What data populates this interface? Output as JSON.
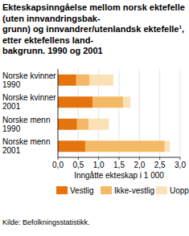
{
  "chart_data": {
    "type": "bar",
    "orientation": "horizontal",
    "stacked": true,
    "title": "Ekteskapsinngåelse mellom norsk ektefelle (uten innvandringsbak- grunn) og innvandrer/utenlandsk ektefelle¹, etter ektefellens land- bakgrunn. 1990 og 2001",
    "categories": [
      "Norske kvinner 1990",
      "Norske kvinner 2001",
      "Norske menn 1990",
      "Norske menn 2001"
    ],
    "series": [
      {
        "name": "Vestlig",
        "color": "#e5740f",
        "values": [
          0.45,
          0.85,
          0.47,
          0.67
        ]
      },
      {
        "name": "Ikke-vestlig",
        "color": "#f4b967",
        "values": [
          0.32,
          0.75,
          0.28,
          1.95
        ]
      },
      {
        "name": "Uoppgitt",
        "color": "#fbe2b6",
        "values": [
          0.59,
          0.18,
          0.5,
          0.13
        ]
      }
    ],
    "xlabel": "Inngåtte ekteskap i 1 000",
    "xlim": [
      0,
      3
    ],
    "xticks": [
      {
        "value": 0,
        "label": "0,0"
      },
      {
        "value": 0.5,
        "label": "0,5"
      },
      {
        "value": 1,
        "label": "1,0"
      },
      {
        "value": 1.5,
        "label": "1,5"
      },
      {
        "value": 2,
        "label": "2,0"
      },
      {
        "value": 2.5,
        "label": "2,5"
      },
      {
        "value": 3,
        "label": "3,0"
      }
    ],
    "grid": true,
    "legend": "bottom",
    "source": "Kilde: Befolkningsstatistikk."
  }
}
